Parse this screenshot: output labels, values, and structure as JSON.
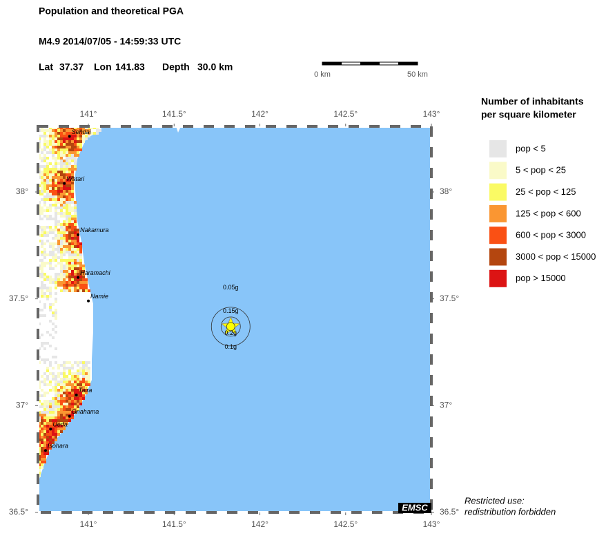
{
  "header": {
    "title": "Population and theoretical PGA",
    "event": "M4.9  2014/07/05 - 14:59:33 UTC",
    "lat_label": "Lat",
    "lat": 37.37,
    "lon_label": "Lon",
    "lon": 141.83,
    "depth_label": "Depth",
    "depth": "30.0 km"
  },
  "scale_bar": {
    "start": "0 km",
    "end": "50 km"
  },
  "map": {
    "xlim": [
      140.706,
      143
    ],
    "ylim": [
      36.5,
      38.307
    ],
    "xticks": [
      {
        "value": 141,
        "label": "141°"
      },
      {
        "value": 141.5,
        "label": "141.5°"
      },
      {
        "value": 142,
        "label": "142°"
      },
      {
        "value": 142.5,
        "label": "142.5°"
      },
      {
        "value": 143,
        "label": "143°"
      }
    ],
    "yticks": [
      {
        "value": 36.5,
        "label": "36.5°"
      },
      {
        "value": 37,
        "label": "37°"
      },
      {
        "value": 37.5,
        "label": "37.5°"
      },
      {
        "value": 38,
        "label": "38°"
      }
    ],
    "cities": [
      {
        "name": "Sendai",
        "lon": 140.89,
        "lat": 38.26
      },
      {
        "name": "Watari",
        "lon": 140.86,
        "lat": 38.04
      },
      {
        "name": "Nakamura",
        "lon": 140.94,
        "lat": 37.8
      },
      {
        "name": "Haramachi",
        "lon": 140.94,
        "lat": 37.6
      },
      {
        "name": "Namie",
        "lon": 141.0,
        "lat": 37.49
      },
      {
        "name": "Taira",
        "lon": 140.93,
        "lat": 37.05
      },
      {
        "name": "Onahama",
        "lon": 140.89,
        "lat": 36.95
      },
      {
        "name": "Ueda",
        "lon": 140.78,
        "lat": 36.89
      },
      {
        "name": "Isohara",
        "lon": 140.75,
        "lat": 36.79
      }
    ],
    "pga_labels": [
      "0.05g",
      "0.15g",
      "0.2g",
      "0.1g"
    ],
    "logo": "EMSC"
  },
  "legend": {
    "title": [
      "Number of inhabitants",
      "per square kilometer"
    ],
    "items": [
      {
        "label": "pop < 5",
        "color": "#e6e6e6"
      },
      {
        "label": "5 < pop < 25",
        "color": "#fafac8"
      },
      {
        "label": "25 < pop < 125",
        "color": "#fafa64"
      },
      {
        "label": "125 < pop < 600",
        "color": "#fa9632"
      },
      {
        "label": "600 < pop < 3000",
        "color": "#fa5014"
      },
      {
        "label": "3000 < pop < 15000",
        "color": "#b4460f"
      },
      {
        "label": "pop > 15000",
        "color": "#dc1414"
      }
    ]
  },
  "notice": [
    "Restricted use:",
    "redistribution forbidden"
  ]
}
